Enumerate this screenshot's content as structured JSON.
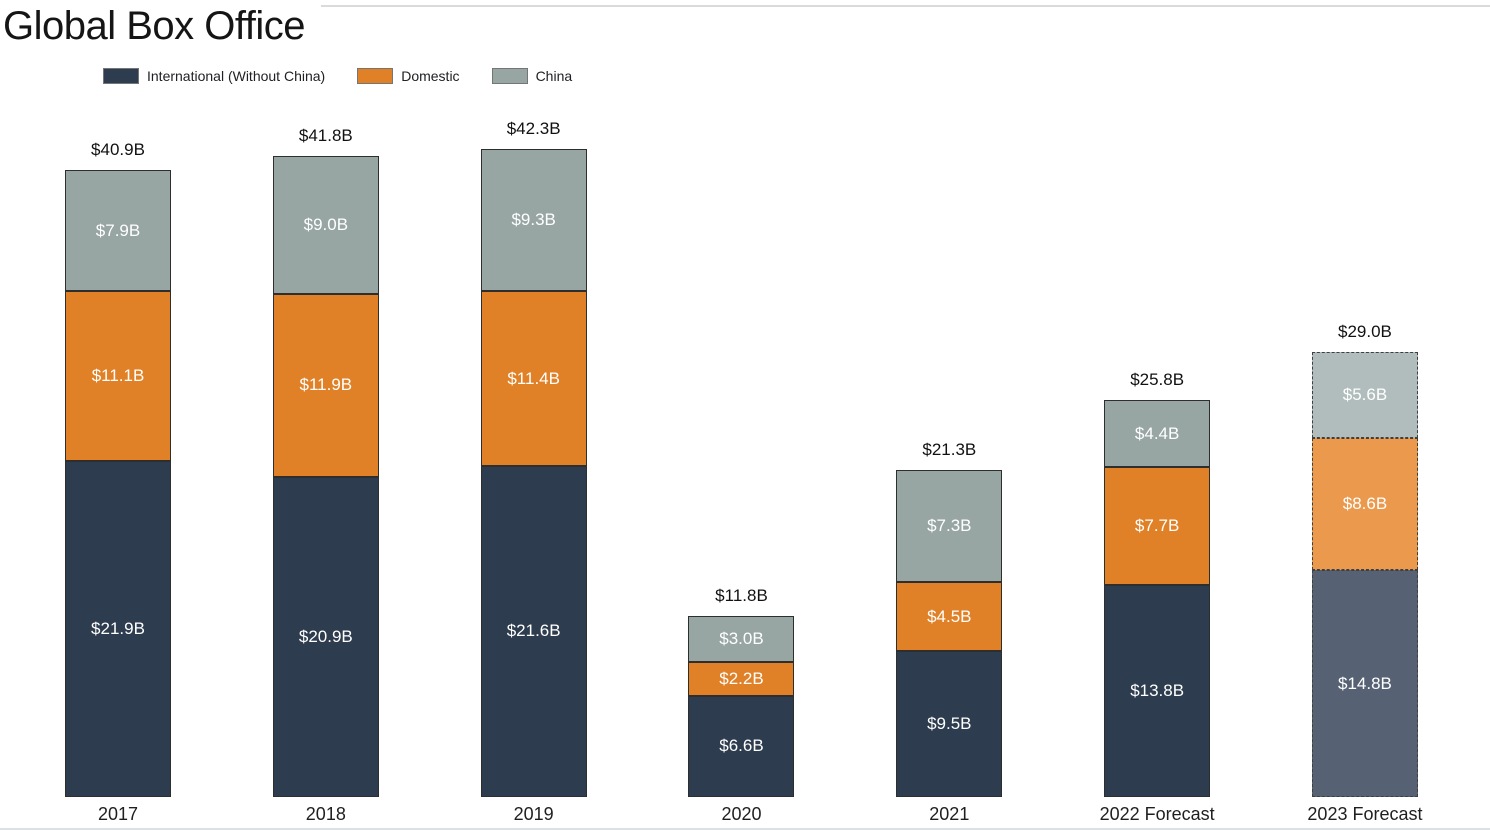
{
  "title": "Global Box Office",
  "legend": {
    "items": [
      {
        "label": "International (Without China)",
        "color": "#2d3c4e"
      },
      {
        "label": "Domestic",
        "color": "#e08127"
      },
      {
        "label": "China",
        "color": "#97a5a3"
      }
    ]
  },
  "chart_data": {
    "type": "bar",
    "stacked": true,
    "title": "Global Box Office",
    "unit": "USD billions",
    "value_prefix": "$",
    "value_suffix": "B",
    "grid": false,
    "legend_position": "top-left",
    "ylim": [
      0,
      45
    ],
    "categories": [
      "2017",
      "2018",
      "2019",
      "2020",
      "2021",
      "2022 Forecast",
      "2023 Forecast"
    ],
    "series": [
      {
        "key": "international",
        "name": "International (Without China)",
        "color": "#2d3c4e",
        "muted_color": "#566274",
        "values": [
          21.9,
          20.9,
          21.6,
          6.6,
          9.5,
          13.8,
          14.8
        ],
        "labels": [
          "$21.9B",
          "$20.9B",
          "$21.6B",
          "$6.6B",
          "$9.5B",
          "$13.8B",
          "$14.8B"
        ]
      },
      {
        "key": "domestic",
        "name": "Domestic",
        "color": "#e08127",
        "muted_color": "#eb994d",
        "values": [
          11.1,
          11.9,
          11.4,
          2.2,
          4.5,
          7.7,
          8.6
        ],
        "labels": [
          "$11.1B",
          "$11.9B",
          "$11.4B",
          "$2.2B",
          "$4.5B",
          "$7.7B",
          "$8.6B"
        ]
      },
      {
        "key": "china",
        "name": "China",
        "color": "#97a5a3",
        "muted_color": "#b1bdbc",
        "values": [
          7.9,
          9.0,
          9.3,
          3.0,
          7.3,
          4.4,
          5.6
        ],
        "labels": [
          "$7.9B",
          "$9.0B",
          "$9.3B",
          "$3.0B",
          "$7.3B",
          "$4.4B",
          "$5.6B"
        ]
      }
    ],
    "totals": [
      40.9,
      41.8,
      42.3,
      11.8,
      21.3,
      25.8,
      29.0
    ],
    "total_labels": [
      "$40.9B",
      "$41.8B",
      "$42.3B",
      "$11.8B",
      "$21.3B",
      "$25.8B",
      "$29.0B"
    ],
    "dashed_categories": [
      "2023 Forecast"
    ]
  },
  "colors": {
    "background": "#ffffff",
    "bar_border": "#2e2e2e",
    "dashed_border": "#3f3f3f",
    "segment_label": "#ffffff",
    "total_label": "#111111",
    "category_label": "#1f1f1f",
    "title": "#151515",
    "legend_text": "#202124",
    "divider": "#dadada"
  }
}
